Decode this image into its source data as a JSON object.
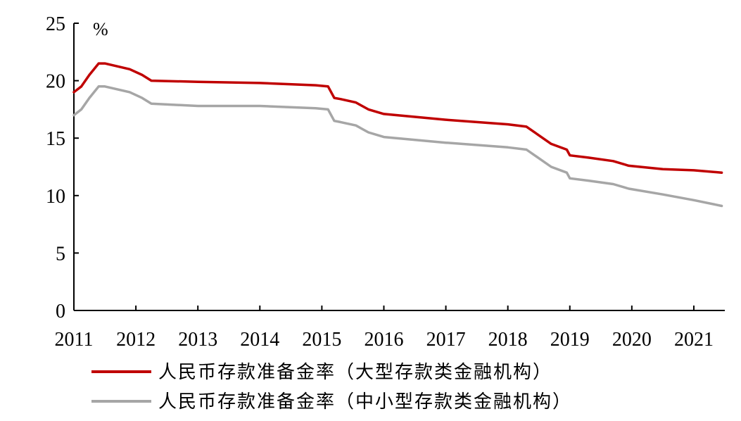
{
  "chart_data": {
    "type": "line",
    "title": "",
    "xlabel": "",
    "ylabel": "%",
    "xlim": [
      2011,
      2021.5
    ],
    "ylim": [
      0,
      25
    ],
    "x_ticks": [
      "2011",
      "2012",
      "2013",
      "2014",
      "2015",
      "2016",
      "2017",
      "2018",
      "2019",
      "2020",
      "2021"
    ],
    "y_ticks": [
      "0",
      "5",
      "10",
      "15",
      "20",
      "25"
    ],
    "grid": false,
    "legend_position": "bottom",
    "series": [
      {
        "name": "人民币存款准备金率（大型存款类金融机构）",
        "color": "#c00000",
        "points": [
          [
            2011.0,
            19.0
          ],
          [
            2011.12,
            19.5
          ],
          [
            2011.25,
            20.5
          ],
          [
            2011.4,
            21.5
          ],
          [
            2011.5,
            21.5
          ],
          [
            2011.9,
            21.0
          ],
          [
            2012.1,
            20.5
          ],
          [
            2012.25,
            20.0
          ],
          [
            2013.0,
            19.9
          ],
          [
            2014.0,
            19.8
          ],
          [
            2014.9,
            19.6
          ],
          [
            2015.1,
            19.5
          ],
          [
            2015.2,
            18.5
          ],
          [
            2015.3,
            18.4
          ],
          [
            2015.55,
            18.1
          ],
          [
            2015.65,
            17.8
          ],
          [
            2015.75,
            17.5
          ],
          [
            2016.0,
            17.1
          ],
          [
            2017.0,
            16.6
          ],
          [
            2018.0,
            16.2
          ],
          [
            2018.3,
            16.0
          ],
          [
            2018.7,
            14.5
          ],
          [
            2018.95,
            14.0
          ],
          [
            2019.0,
            13.5
          ],
          [
            2019.3,
            13.3
          ],
          [
            2019.7,
            13.0
          ],
          [
            2019.95,
            12.6
          ],
          [
            2020.5,
            12.3
          ],
          [
            2021.0,
            12.2
          ],
          [
            2021.45,
            12.0
          ]
        ]
      },
      {
        "name": "人民币存款准备金率（中小型存款类金融机构）",
        "color": "#a6a6a6",
        "points": [
          [
            2011.0,
            17.0
          ],
          [
            2011.12,
            17.5
          ],
          [
            2011.25,
            18.5
          ],
          [
            2011.4,
            19.5
          ],
          [
            2011.5,
            19.5
          ],
          [
            2011.9,
            19.0
          ],
          [
            2012.1,
            18.5
          ],
          [
            2012.25,
            18.0
          ],
          [
            2013.0,
            17.8
          ],
          [
            2014.0,
            17.8
          ],
          [
            2014.9,
            17.6
          ],
          [
            2015.1,
            17.5
          ],
          [
            2015.2,
            16.5
          ],
          [
            2015.3,
            16.4
          ],
          [
            2015.55,
            16.1
          ],
          [
            2015.65,
            15.8
          ],
          [
            2015.75,
            15.5
          ],
          [
            2016.0,
            15.1
          ],
          [
            2017.0,
            14.6
          ],
          [
            2018.0,
            14.2
          ],
          [
            2018.3,
            14.0
          ],
          [
            2018.7,
            12.5
          ],
          [
            2018.95,
            12.0
          ],
          [
            2019.0,
            11.5
          ],
          [
            2019.3,
            11.3
          ],
          [
            2019.7,
            11.0
          ],
          [
            2019.95,
            10.6
          ],
          [
            2020.5,
            10.1
          ],
          [
            2021.0,
            9.6
          ],
          [
            2021.45,
            9.1
          ]
        ]
      }
    ]
  }
}
